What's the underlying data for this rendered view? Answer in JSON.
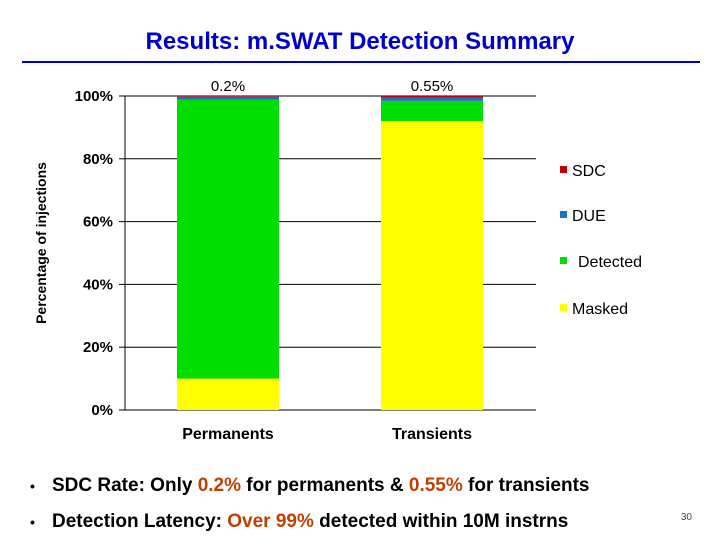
{
  "slide": {
    "title": "Results: m.SWAT Detection Summary",
    "slide_number": "30"
  },
  "bullets": [
    {
      "pre": "SDC Rate: Only ",
      "hl1": "0.2%",
      "mid": " for permanents & ",
      "hl2": "0.55%",
      "post": " for transients"
    },
    {
      "pre": "Detection Latency: ",
      "hl1": "Over 99%",
      "mid": " detected within 10M instrns",
      "hl2": "",
      "post": ""
    }
  ],
  "colors": {
    "SDC": "#c00000",
    "DUE": "#1f6fc0",
    "Detected": "#00dd00",
    "Masked": "#ffff00",
    "title": "#0000cc",
    "highlight": "#c04000"
  },
  "chart_data": {
    "type": "bar",
    "stacked": true,
    "categories": [
      "Permanents",
      "Transients"
    ],
    "series": [
      {
        "name": "Masked",
        "values": [
          10,
          92
        ]
      },
      {
        "name": "Detected",
        "values": [
          88.8,
          6.45
        ]
      },
      {
        "name": "DUE",
        "values": [
          1.0,
          1.0
        ]
      },
      {
        "name": "SDC",
        "values": [
          0.2,
          0.55
        ]
      }
    ],
    "top_labels": [
      "0.2%",
      "0.55%"
    ],
    "ylabel": "Percentage of injections",
    "yticks": [
      "0%",
      "20%",
      "40%",
      "60%",
      "80%",
      "100%"
    ],
    "ylim": [
      0,
      100
    ],
    "grid": true,
    "legend_position": "right",
    "legend": [
      "SDC",
      "DUE",
      "Detected",
      "Masked"
    ]
  }
}
